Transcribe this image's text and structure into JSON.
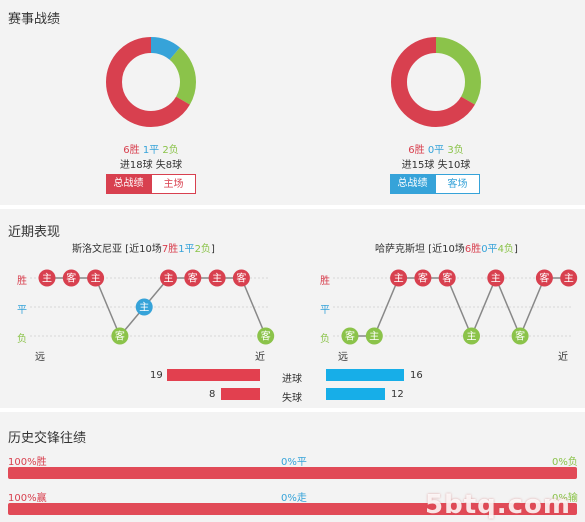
{
  "section1": {
    "title": "赛事战绩",
    "left": {
      "wins": "6胜",
      "draws": "1平",
      "losses": "2负",
      "goals": "进18球",
      "conceded": "失8球",
      "btn_all": "总战绩",
      "btn_venue": "主场",
      "donut": [
        6,
        1,
        2
      ]
    },
    "right": {
      "wins": "6胜",
      "draws": "0平",
      "losses": "3负",
      "goals": "进15球",
      "conceded": "失10球",
      "btn_all": "总战绩",
      "btn_venue": "客场",
      "donut": [
        6,
        0,
        3
      ]
    }
  },
  "section2": {
    "title": "近期表现",
    "left": {
      "team_prefix": "斯洛文尼亚 [近10场",
      "w": "7胜",
      "d": "1平",
      "l": "2负",
      "suffix": "]",
      "results": [
        {
          "r": "W",
          "venue": "主"
        },
        {
          "r": "W",
          "venue": "客"
        },
        {
          "r": "W",
          "venue": "主"
        },
        {
          "r": "L",
          "venue": "客"
        },
        {
          "r": "D",
          "venue": "主"
        },
        {
          "r": "W",
          "venue": "主"
        },
        {
          "r": "W",
          "venue": "客"
        },
        {
          "r": "W",
          "venue": "主"
        },
        {
          "r": "W",
          "venue": "客"
        },
        {
          "r": "L",
          "venue": "客"
        }
      ],
      "goals": 19,
      "conceded": 8
    },
    "right": {
      "team_prefix": "哈萨克斯坦 [近10场",
      "w": "6胜",
      "d": "0平",
      "l": "4负",
      "suffix": "]",
      "results": [
        {
          "r": "L",
          "venue": "客"
        },
        {
          "r": "L",
          "venue": "主"
        },
        {
          "r": "W",
          "venue": "主"
        },
        {
          "r": "W",
          "venue": "客"
        },
        {
          "r": "W",
          "venue": "客"
        },
        {
          "r": "L",
          "venue": "主"
        },
        {
          "r": "W",
          "venue": "主"
        },
        {
          "r": "L",
          "venue": "客"
        },
        {
          "r": "W",
          "venue": "客"
        },
        {
          "r": "W",
          "venue": "主"
        }
      ],
      "goals": 16,
      "conceded": 12
    },
    "axis": {
      "win": "胜",
      "draw": "平",
      "loss": "负",
      "far": "远",
      "near": "近"
    },
    "legend": {
      "goals": "进球",
      "conceded": "失球"
    },
    "left_goals": "19",
    "left_conceded": "8",
    "right_goals": "16",
    "right_conceded": "12"
  },
  "section3": {
    "title": "历史交锋往绩",
    "row1": {
      "left": "100%胜",
      "mid": "0%平",
      "right": "0%负",
      "win_pct": 1.0
    },
    "row2": {
      "left": "100%赢",
      "mid": "0%走",
      "right": "0%输",
      "win_pct": 1.0
    }
  },
  "watermark": "5btq.com",
  "colors": {
    "red": "#d8404f",
    "blue": "#36a3d9",
    "green": "#8bc34a",
    "barred": "#e2404f",
    "barblue": "#17aee8"
  }
}
